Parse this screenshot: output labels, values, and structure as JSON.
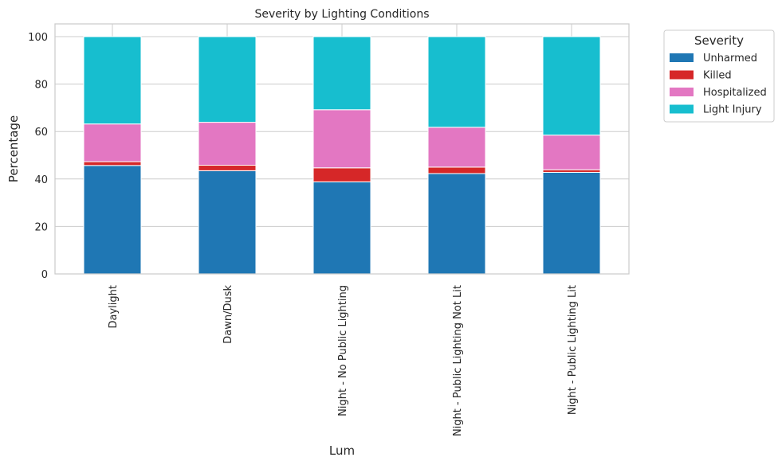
{
  "chart_data": {
    "type": "bar",
    "stacked": true,
    "title": "Severity by Lighting Conditions",
    "xlabel": "Lum",
    "ylabel": "Percentage",
    "ylim": [
      0,
      105
    ],
    "yticks": [
      0,
      20,
      40,
      60,
      80,
      100
    ],
    "grid": true,
    "legend_title": "Severity",
    "legend_position": "outside-top-right",
    "categories": [
      "Daylight",
      "Dawn/Dusk",
      "Night - No Public Lighting",
      "Night - Public Lighting Not Lit",
      "Night - Public Lighting Lit"
    ],
    "series": [
      {
        "name": "Unharmed",
        "color": "#1f77b4",
        "values": [
          45.7,
          43.5,
          38.8,
          42.3,
          42.8
        ]
      },
      {
        "name": "Killed",
        "color": "#d62728",
        "values": [
          1.6,
          2.3,
          5.9,
          2.7,
          1.1
        ]
      },
      {
        "name": "Hospitalized",
        "color": "#e377c2",
        "values": [
          15.9,
          18.1,
          24.5,
          16.8,
          14.6
        ]
      },
      {
        "name": "Light Injury",
        "color": "#17becf",
        "values": [
          36.8,
          36.1,
          30.8,
          38.2,
          41.5
        ]
      }
    ]
  }
}
